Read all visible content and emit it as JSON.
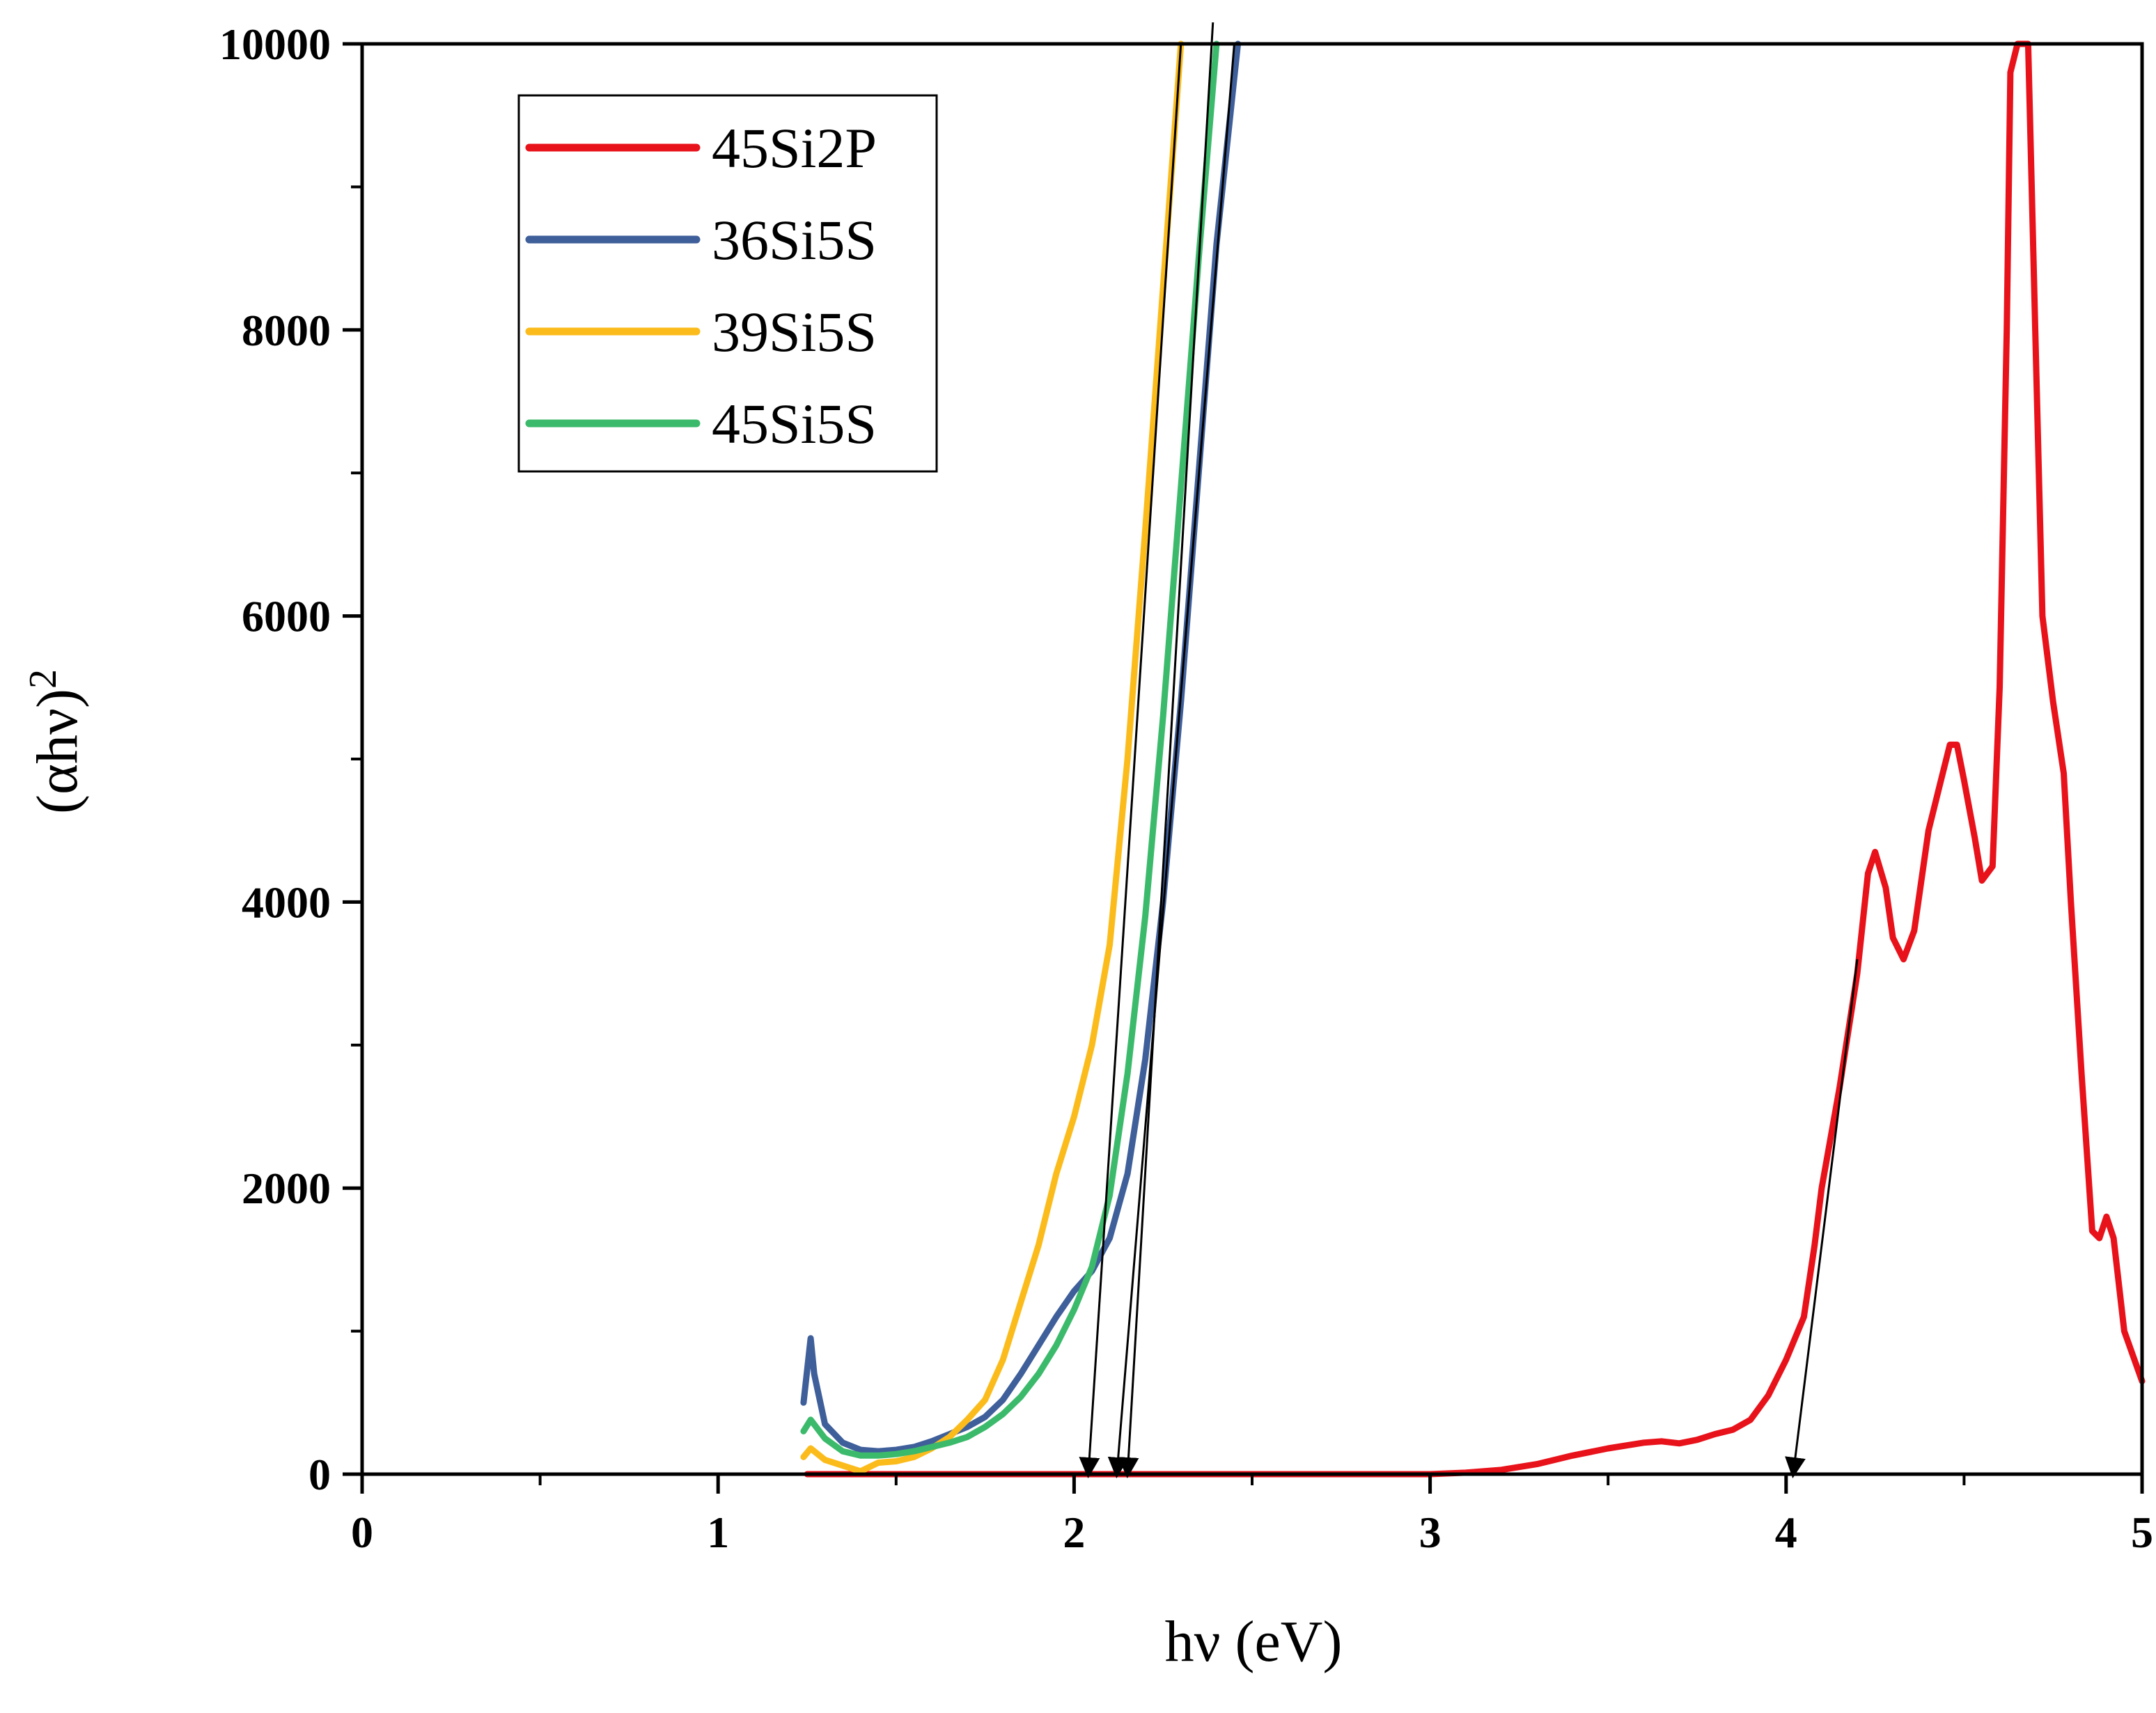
{
  "chart_data": {
    "type": "line",
    "title": "",
    "xlabel": "hν (eV)",
    "ylabel": "(αhν)",
    "ylabel_superscript": "2",
    "xlim": [
      0,
      5
    ],
    "ylim": [
      0,
      10000
    ],
    "x_ticks": [
      0,
      1,
      2,
      3,
      4,
      5
    ],
    "x_tick_labels": [
      "0",
      "1",
      "2",
      "3",
      "4",
      "5"
    ],
    "y_ticks": [
      0,
      2000,
      4000,
      6000,
      8000,
      10000
    ],
    "y_tick_labels": [
      "0",
      "2000",
      "4000",
      "6000",
      "8000",
      "10000"
    ],
    "grid": false,
    "legend_position": "top-left",
    "series": [
      {
        "name": "45Si2P",
        "color": "#e8121b",
        "points": [
          [
            1.25,
            0
          ],
          [
            1.5,
            0
          ],
          [
            2.0,
            0
          ],
          [
            2.5,
            0
          ],
          [
            3.0,
            0
          ],
          [
            3.1,
            10
          ],
          [
            3.2,
            30
          ],
          [
            3.3,
            70
          ],
          [
            3.4,
            130
          ],
          [
            3.5,
            180
          ],
          [
            3.6,
            220
          ],
          [
            3.65,
            230
          ],
          [
            3.7,
            215
          ],
          [
            3.75,
            240
          ],
          [
            3.8,
            280
          ],
          [
            3.85,
            310
          ],
          [
            3.9,
            380
          ],
          [
            3.95,
            550
          ],
          [
            4.0,
            800
          ],
          [
            4.05,
            1100
          ],
          [
            4.08,
            1600
          ],
          [
            4.1,
            2000
          ],
          [
            4.15,
            2700
          ],
          [
            4.2,
            3500
          ],
          [
            4.23,
            4200
          ],
          [
            4.25,
            4350
          ],
          [
            4.28,
            4100
          ],
          [
            4.3,
            3750
          ],
          [
            4.33,
            3600
          ],
          [
            4.36,
            3800
          ],
          [
            4.4,
            4500
          ],
          [
            4.43,
            4800
          ],
          [
            4.46,
            5100
          ],
          [
            4.48,
            5100
          ],
          [
            4.5,
            4850
          ],
          [
            4.53,
            4450
          ],
          [
            4.55,
            4150
          ],
          [
            4.58,
            4250
          ],
          [
            4.6,
            5500
          ],
          [
            4.62,
            8000
          ],
          [
            4.63,
            9800
          ],
          [
            4.65,
            10000
          ],
          [
            4.68,
            10000
          ],
          [
            4.7,
            8000
          ],
          [
            4.72,
            6000
          ],
          [
            4.75,
            5400
          ],
          [
            4.78,
            4900
          ],
          [
            4.8,
            4000
          ],
          [
            4.83,
            2800
          ],
          [
            4.86,
            1700
          ],
          [
            4.88,
            1650
          ],
          [
            4.9,
            1800
          ],
          [
            4.92,
            1650
          ],
          [
            4.95,
            1000
          ],
          [
            5.0,
            650
          ]
        ]
      },
      {
        "name": "36Si5S",
        "color": "#3f5f9a",
        "points": [
          [
            1.24,
            500
          ],
          [
            1.26,
            950
          ],
          [
            1.27,
            700
          ],
          [
            1.3,
            350
          ],
          [
            1.35,
            220
          ],
          [
            1.4,
            170
          ],
          [
            1.45,
            160
          ],
          [
            1.5,
            170
          ],
          [
            1.55,
            190
          ],
          [
            1.6,
            230
          ],
          [
            1.65,
            280
          ],
          [
            1.7,
            330
          ],
          [
            1.75,
            400
          ],
          [
            1.8,
            520
          ],
          [
            1.85,
            700
          ],
          [
            1.9,
            900
          ],
          [
            1.95,
            1100
          ],
          [
            2.0,
            1280
          ],
          [
            2.05,
            1420
          ],
          [
            2.1,
            1650
          ],
          [
            2.15,
            2100
          ],
          [
            2.2,
            2900
          ],
          [
            2.25,
            4000
          ],
          [
            2.3,
            5400
          ],
          [
            2.35,
            7000
          ],
          [
            2.4,
            8600
          ],
          [
            2.46,
            10000
          ]
        ]
      },
      {
        "name": "39Si5S",
        "color": "#fbbb1b",
        "points": [
          [
            1.24,
            120
          ],
          [
            1.26,
            180
          ],
          [
            1.3,
            100
          ],
          [
            1.35,
            60
          ],
          [
            1.4,
            20
          ],
          [
            1.45,
            80
          ],
          [
            1.5,
            90
          ],
          [
            1.55,
            120
          ],
          [
            1.6,
            180
          ],
          [
            1.65,
            260
          ],
          [
            1.7,
            380
          ],
          [
            1.75,
            520
          ],
          [
            1.8,
            800
          ],
          [
            1.85,
            1200
          ],
          [
            1.9,
            1600
          ],
          [
            1.95,
            2100
          ],
          [
            2.0,
            2500
          ],
          [
            2.05,
            3000
          ],
          [
            2.1,
            3700
          ],
          [
            2.15,
            5000
          ],
          [
            2.2,
            6600
          ],
          [
            2.25,
            8300
          ],
          [
            2.3,
            10000
          ]
        ]
      },
      {
        "name": "45Si5S",
        "color": "#3cba6b",
        "points": [
          [
            1.24,
            300
          ],
          [
            1.26,
            380
          ],
          [
            1.3,
            250
          ],
          [
            1.35,
            160
          ],
          [
            1.4,
            130
          ],
          [
            1.45,
            130
          ],
          [
            1.5,
            140
          ],
          [
            1.55,
            160
          ],
          [
            1.6,
            190
          ],
          [
            1.65,
            220
          ],
          [
            1.7,
            260
          ],
          [
            1.75,
            330
          ],
          [
            1.8,
            420
          ],
          [
            1.85,
            540
          ],
          [
            1.9,
            700
          ],
          [
            1.95,
            900
          ],
          [
            2.0,
            1150
          ],
          [
            2.05,
            1450
          ],
          [
            2.1,
            1950
          ],
          [
            2.15,
            2800
          ],
          [
            2.2,
            3900
          ],
          [
            2.25,
            5300
          ],
          [
            2.3,
            6900
          ],
          [
            2.35,
            8500
          ],
          [
            2.4,
            10000
          ]
        ]
      }
    ],
    "annotations": [
      {
        "type": "tangent-arrow",
        "from": [
          2.3,
          10000
        ],
        "to": [
          2.04,
          0
        ]
      },
      {
        "type": "tangent-arrow",
        "from": [
          2.45,
          10000
        ],
        "to": [
          2.12,
          0
        ]
      },
      {
        "type": "tangent-arrow",
        "from": [
          2.39,
          10150
        ],
        "to": [
          2.15,
          0
        ]
      },
      {
        "type": "tangent-arrow",
        "from": [
          4.2,
          3600
        ],
        "to": [
          4.02,
          0
        ]
      }
    ]
  }
}
